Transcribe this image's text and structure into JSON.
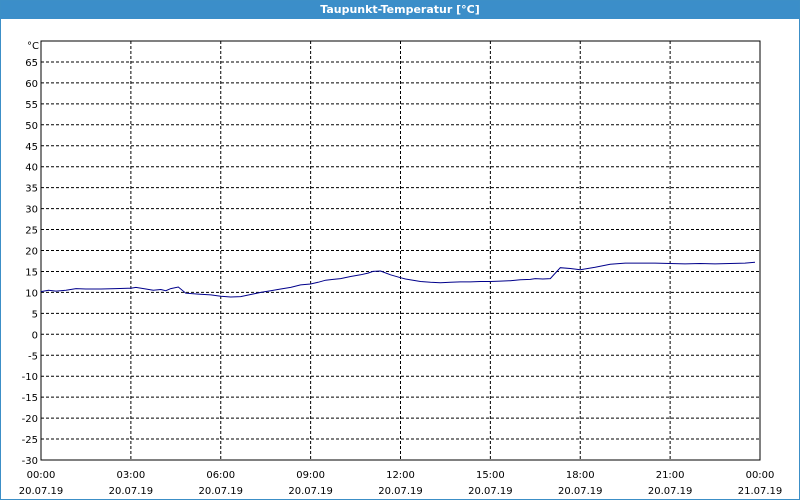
{
  "window": {
    "title": "Taupunkt-Temperatur [°C]"
  },
  "chart_data": {
    "type": "line",
    "title": "Taupunkt-Temperatur [°C]",
    "ylabel": "°C",
    "ylim": [
      -30,
      70
    ],
    "yticks": [
      -30,
      -25,
      -20,
      -15,
      -10,
      -5,
      0,
      5,
      10,
      15,
      20,
      25,
      30,
      35,
      40,
      45,
      50,
      55,
      60,
      65
    ],
    "xlim_hours": [
      0,
      24
    ],
    "xticks": [
      {
        "time": "00:00",
        "date": "20.07.19"
      },
      {
        "time": "03:00",
        "date": "20.07.19"
      },
      {
        "time": "06:00",
        "date": "20.07.19"
      },
      {
        "time": "09:00",
        "date": "20.07.19"
      },
      {
        "time": "12:00",
        "date": "20.07.19"
      },
      {
        "time": "15:00",
        "date": "20.07.19"
      },
      {
        "time": "18:00",
        "date": "20.07.19"
      },
      {
        "time": "21:00",
        "date": "20.07.19"
      },
      {
        "time": "00:00",
        "date": "21.07.19"
      }
    ],
    "grid": true,
    "line_color": "#00008b",
    "series": [
      {
        "x": [
          "00:00",
          "00:15",
          "00:30",
          "00:50",
          "01:10",
          "01:30",
          "02:00",
          "02:30",
          "03:00",
          "03:10",
          "03:30",
          "03:45",
          "04:00",
          "04:10",
          "04:20",
          "04:35",
          "04:50",
          "05:15",
          "05:40",
          "06:00",
          "06:20",
          "06:40",
          "07:00",
          "07:20",
          "07:40",
          "08:00",
          "08:20",
          "08:40",
          "09:00",
          "09:15",
          "09:30",
          "09:45",
          "10:00",
          "10:20",
          "10:40",
          "10:55",
          "11:05",
          "11:20",
          "11:40",
          "12:00",
          "12:10",
          "12:25",
          "12:40",
          "13:00",
          "13:20",
          "13:40",
          "14:00",
          "14:20",
          "14:40",
          "15:00",
          "15:20",
          "15:40",
          "16:00",
          "16:20",
          "16:30",
          "16:45",
          "17:00",
          "17:20",
          "17:40",
          "18:00",
          "18:30",
          "19:00",
          "19:30",
          "20:00",
          "20:30",
          "21:00",
          "21:30",
          "22:00",
          "22:30",
          "23:00",
          "23:30",
          "23:50"
        ],
        "y": [
          10.2,
          10.5,
          10.3,
          10.5,
          10.9,
          10.8,
          10.8,
          10.9,
          11.0,
          11.2,
          10.8,
          10.5,
          10.7,
          10.4,
          10.9,
          11.3,
          9.8,
          9.6,
          9.4,
          9.1,
          8.9,
          9.0,
          9.5,
          10.0,
          10.4,
          10.8,
          11.2,
          11.8,
          12.0,
          12.4,
          12.9,
          13.1,
          13.3,
          13.8,
          14.2,
          14.6,
          15.0,
          15.1,
          14.2,
          13.5,
          13.2,
          12.9,
          12.6,
          12.4,
          12.3,
          12.4,
          12.5,
          12.5,
          12.6,
          12.6,
          12.7,
          12.8,
          13.0,
          13.1,
          13.3,
          13.2,
          13.3,
          15.9,
          15.7,
          15.4,
          16.0,
          16.7,
          17.0,
          17.0,
          17.0,
          16.9,
          16.8,
          16.9,
          16.8,
          16.9,
          17.0,
          17.2
        ]
      }
    ]
  }
}
